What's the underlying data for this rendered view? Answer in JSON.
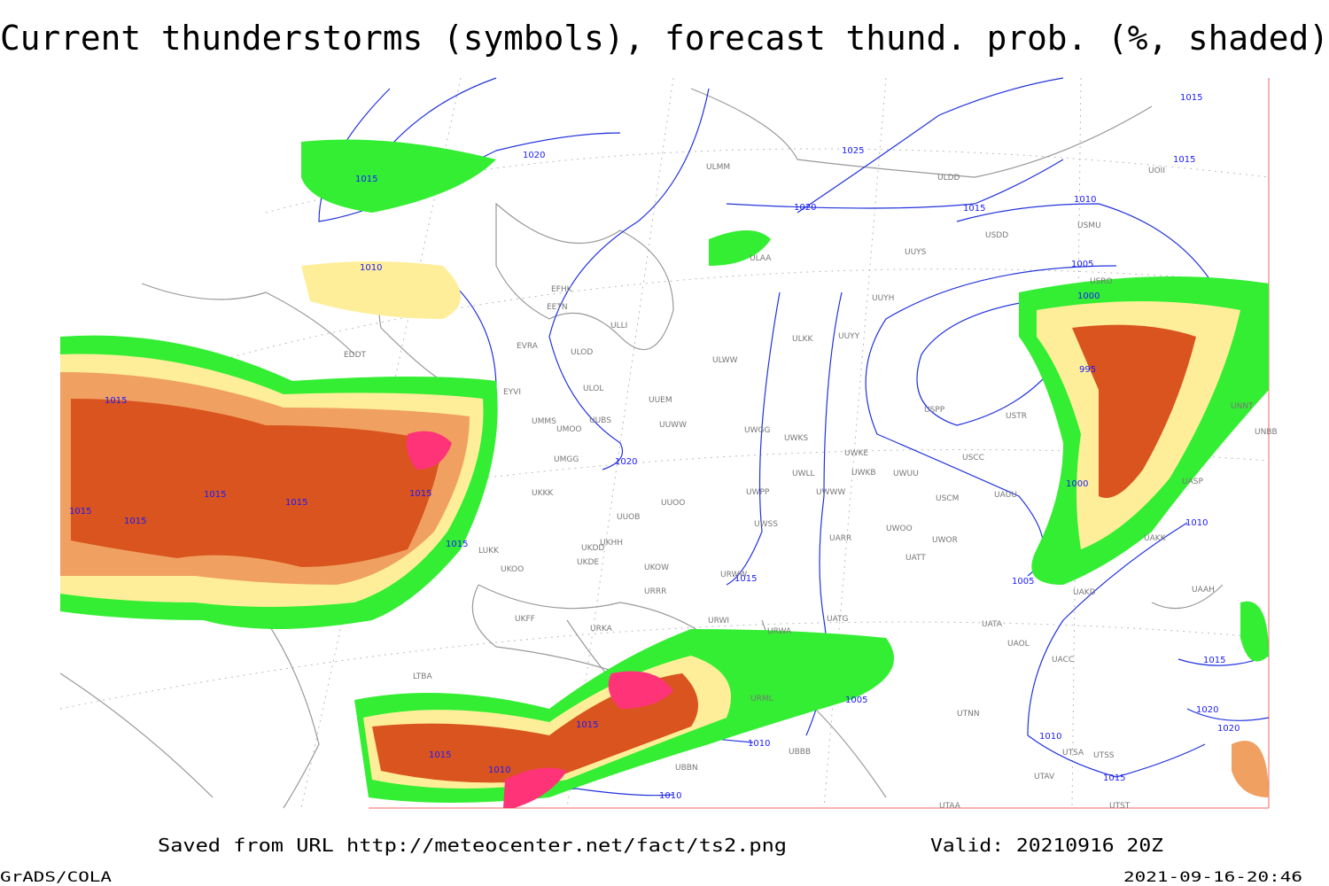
{
  "header": {
    "title": "Current thunderstorms (symbols), forecast thund. prob. (%, shaded)"
  },
  "footer": {
    "saved": "Saved from URL http://meteocenter.net/fact/ts2.png",
    "valid": "Valid: 20210916 20Z",
    "credit": "GrADS/COLA",
    "timestamp": "2021-09-16-20:46"
  },
  "map": {
    "isobar_labels": [
      "1015",
      "1020",
      "1025",
      "1015",
      "1015",
      "1020",
      "1015",
      "1010",
      "1010",
      "1005",
      "1000",
      "995",
      "1015",
      "1015",
      "1015",
      "1015",
      "1015",
      "1015",
      "1015",
      "1020",
      "1015",
      "1005",
      "1000",
      "1010",
      "1015",
      "1020",
      "1020",
      "1005",
      "1015",
      "1015",
      "1010",
      "1010",
      "1010",
      "1015",
      "1010"
    ],
    "station_labels": [
      "ULMM",
      "ULDD",
      "UOII",
      "USDD",
      "USMU",
      "ULAA",
      "UUYS",
      "USRO",
      "EFHK",
      "EETN",
      "UUYH",
      "ULLI",
      "UUYY",
      "ULKK",
      "EVRA",
      "ULOD",
      "ULWW",
      "EDDT",
      "EYVI",
      "ULOL",
      "UUEM",
      "UMMS",
      "UMOO",
      "UUBS",
      "UUWW",
      "UWGG",
      "UWKS",
      "USPP",
      "USTR",
      "UNNT",
      "UNBB",
      "UWKE",
      "USCC",
      "UMGG",
      "UWLL",
      "UWKB",
      "UWUU",
      "UWPP",
      "UWWW",
      "USCM",
      "UAUU",
      "UASP",
      "UKKK",
      "UUOO",
      "UUOB",
      "UWSS",
      "UAKK",
      "UKHH",
      "UKDD",
      "UARR",
      "UWOO",
      "UWOR",
      "LUKK",
      "UKOO",
      "UKDE",
      "UKOW",
      "URWW",
      "UATT",
      "UAKD",
      "UAAH",
      "URRR",
      "UKFF",
      "URKA",
      "URWI",
      "UATG",
      "UATA",
      "URWA",
      "UAOL",
      "UACC",
      "LTBA",
      "URML",
      "UTNN",
      "UBBB",
      "UBBN",
      "UTSA",
      "UTSS",
      "UTAV",
      "UTAA",
      "UTST"
    ]
  }
}
